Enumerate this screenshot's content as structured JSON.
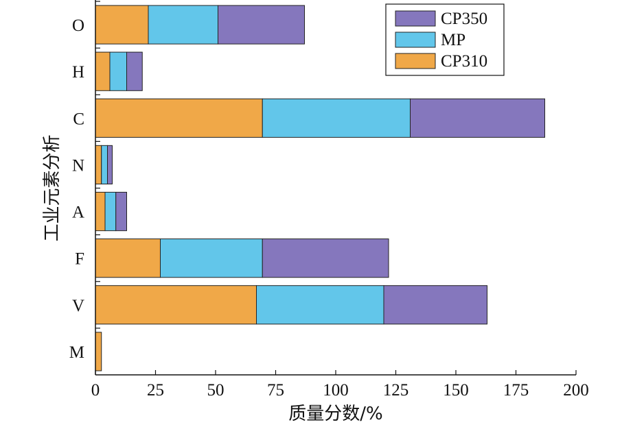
{
  "chart_data": {
    "type": "bar",
    "orientation": "horizontal",
    "stacked": true,
    "categories": [
      "O",
      "H",
      "C",
      "N",
      "A",
      "F",
      "V",
      "M"
    ],
    "series": [
      {
        "name": "CP310",
        "color": "#F0A848",
        "values": [
          22,
          6,
          69.5,
          2.5,
          4,
          27,
          67,
          2.5
        ]
      },
      {
        "name": "MP",
        "color": "#62C6EA",
        "values": [
          29,
          7,
          61.5,
          2.5,
          4.5,
          42.5,
          53,
          0
        ]
      },
      {
        "name": "CP350",
        "color": "#8577BD",
        "values": [
          36,
          6.5,
          56,
          2,
          4.5,
          52.5,
          43,
          0
        ]
      }
    ],
    "legend_order": [
      "CP350",
      "MP",
      "CP310"
    ],
    "legend_position": "top-right",
    "xlabel": "质量分数/%",
    "ylabel": "工业元素分析",
    "xlim": [
      0,
      200
    ],
    "xticks": [
      "0",
      "25",
      "50",
      "75",
      "100",
      "125",
      "150",
      "175",
      "200"
    ],
    "grid": false
  }
}
